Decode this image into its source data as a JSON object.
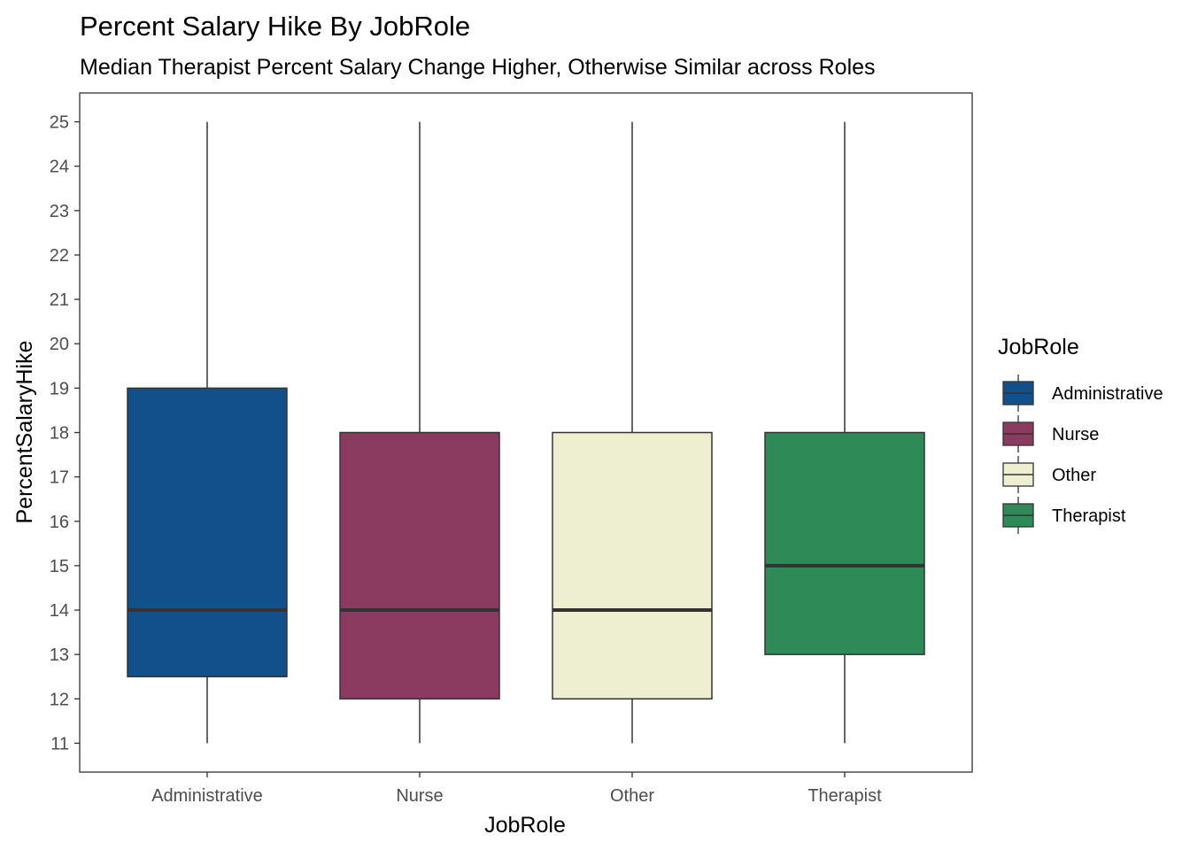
{
  "chart_data": {
    "type": "boxplot",
    "title": "Percent Salary Hike By JobRole",
    "subtitle": "Median Therapist Percent Salary Change Higher, Otherwise Similar across Roles",
    "xlabel": "JobRole",
    "ylabel": "PercentSalaryHike",
    "ylim": [
      10.35,
      25.65
    ],
    "yticks": [
      11,
      12,
      13,
      14,
      15,
      16,
      17,
      18,
      19,
      20,
      21,
      22,
      23,
      24,
      25
    ],
    "grid": false,
    "legend": {
      "title": "JobRole",
      "placement": "right"
    },
    "categories": [
      "Administrative",
      "Nurse",
      "Other",
      "Therapist"
    ],
    "series": [
      {
        "name": "Administrative",
        "min": 11,
        "q1": 12.5,
        "median": 14,
        "q3": 19,
        "max": 25,
        "color": "#11508a"
      },
      {
        "name": "Nurse",
        "min": 11,
        "q1": 12,
        "median": 14,
        "q3": 18,
        "max": 25,
        "color": "#8b3b60"
      },
      {
        "name": "Other",
        "min": 11,
        "q1": 12,
        "median": 14,
        "q3": 18,
        "max": 25,
        "color": "#eeefd0"
      },
      {
        "name": "Therapist",
        "min": 11,
        "q1": 13,
        "median": 15,
        "q3": 18,
        "max": 25,
        "color": "#2e8b57"
      }
    ]
  }
}
